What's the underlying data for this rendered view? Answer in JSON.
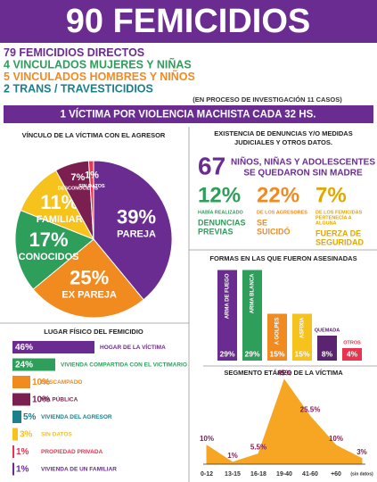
{
  "header": {
    "title": "90 FEMICIDIOS",
    "counts": [
      {
        "number": 79,
        "label": "FEMICIDIOS DIRECTOS",
        "color": "#6a2c91"
      },
      {
        "number": 4,
        "label": "VINCULADOS MUJERES Y NIÑAS",
        "color": "#2e9e5b"
      },
      {
        "number": 5,
        "label": "VINCULADOS HOMBRES Y NIÑOS",
        "color": "#f28b1f"
      },
      {
        "number": 2,
        "label": "TRANS / TRAVESTICIDIOS",
        "color": "#1b7f8c"
      }
    ],
    "note": "(EN PROCESO DE INVESTIGACIÓN 11 CASOS)",
    "banner": "1 VÍCTIMA POR VIOLENCIA MACHISTA CADA 32 HS."
  },
  "facts": {
    "title": [
      "EXISTENCIA DE DENUNCIAS Y/O MEDIDAS",
      "JUDICIALES Y OTROS DATOS."
    ],
    "orphans": {
      "number": 67,
      "lines": [
        "NIÑOS, NIÑAS Y ADOLESCENTES",
        "SE QUEDARON SIN MADRE"
      ]
    },
    "stats": [
      {
        "value": "12%",
        "small": [
          "HABÍA REALIZADO"
        ],
        "big": [
          "DENUNCIAS",
          "PREVIAS"
        ],
        "color": "#2e9e5b"
      },
      {
        "value": "22%",
        "small": [
          "DE LOS AGRESORES"
        ],
        "big": [
          "SE",
          "SUICIDÓ"
        ],
        "color": "#f28b1f"
      },
      {
        "value": "7%",
        "small": [
          "DE LOS FEMICIDAS",
          "PERTENECÍA A",
          "ALGUNA"
        ],
        "big": [
          "FUERZA DE",
          "SEGURIDAD"
        ],
        "color": "#e0a800"
      }
    ]
  },
  "chart_data": [
    {
      "type": "pie",
      "title": "VÍNCULO DE LA VÍCTIMA CON EL AGRESOR",
      "categories": [
        "PAREJA",
        "EX PAREJA",
        "CONOCIDOS",
        "FAMILIAR",
        "DESCONOCIDOS",
        "SIN DATOS"
      ],
      "values": [
        39,
        25,
        17,
        11,
        7,
        1
      ],
      "value_labels": [
        "39%",
        "25%",
        "17%",
        "11%",
        "7%",
        "1%"
      ],
      "colors": [
        "#6a2c91",
        "#f28b1f",
        "#2e9e5b",
        "#f6c21c",
        "#7a1f4f",
        "#e8344e"
      ]
    },
    {
      "type": "bar",
      "orientation": "vertical",
      "title": "FORMAS EN LAS QUE FUERON ASESINADAS",
      "categories": [
        "ARMA DE FUEGO",
        "ARMA BLANCA",
        "A GOLPES",
        "ASFIXIA",
        "QUEMADA",
        "OTROS"
      ],
      "values": [
        29,
        29,
        15,
        15,
        8,
        4
      ],
      "value_labels": [
        "29%",
        "29%",
        "15%",
        "15%",
        "8%",
        "4%"
      ],
      "colors": [
        "#6a2c91",
        "#2e9e5b",
        "#f28b1f",
        "#f6c21c",
        "#5a2470",
        "#e8344e"
      ]
    },
    {
      "type": "bar",
      "orientation": "horizontal",
      "title": "LUGAR FÍSICO DEL FEMICIDIO",
      "categories": [
        "HOGAR DE LA VÍCTIMA",
        "VIVIENDA COMPARTIDA CON EL VICTIMARIO",
        "DESCAMPADO",
        "VÍA PÚBLICA",
        "VIVIENDA DEL AGRESOR",
        "SIN DATOS",
        "PROPIEDAD PRIVADA",
        "VIVIENDA DE UN FAMILIAR"
      ],
      "values": [
        46,
        24,
        10,
        10,
        5,
        3,
        1,
        1
      ],
      "value_labels": [
        "46%",
        "24%",
        "10%",
        "10%",
        "5%",
        "3%",
        "1%",
        "1%"
      ],
      "colors": [
        "#6a2c91",
        "#2e9e5b",
        "#f28b1f",
        "#7a1f4f",
        "#1b7f8c",
        "#f6c21c",
        "#e8344e",
        "#6a2c91"
      ]
    },
    {
      "type": "area",
      "title": "SEGMENTO ETÁREO DE LA VÍCTIMA",
      "categories": [
        "0-12",
        "13-15",
        "16-18",
        "19-40",
        "41-60",
        "+60",
        "(sin datos)"
      ],
      "values": [
        10,
        1,
        5.5,
        45,
        25.5,
        10,
        3
      ],
      "value_labels": [
        "10%",
        "1%",
        "5.5%",
        "45%",
        "25.5%",
        "10%",
        "3%"
      ],
      "color": "#f6a623"
    }
  ]
}
